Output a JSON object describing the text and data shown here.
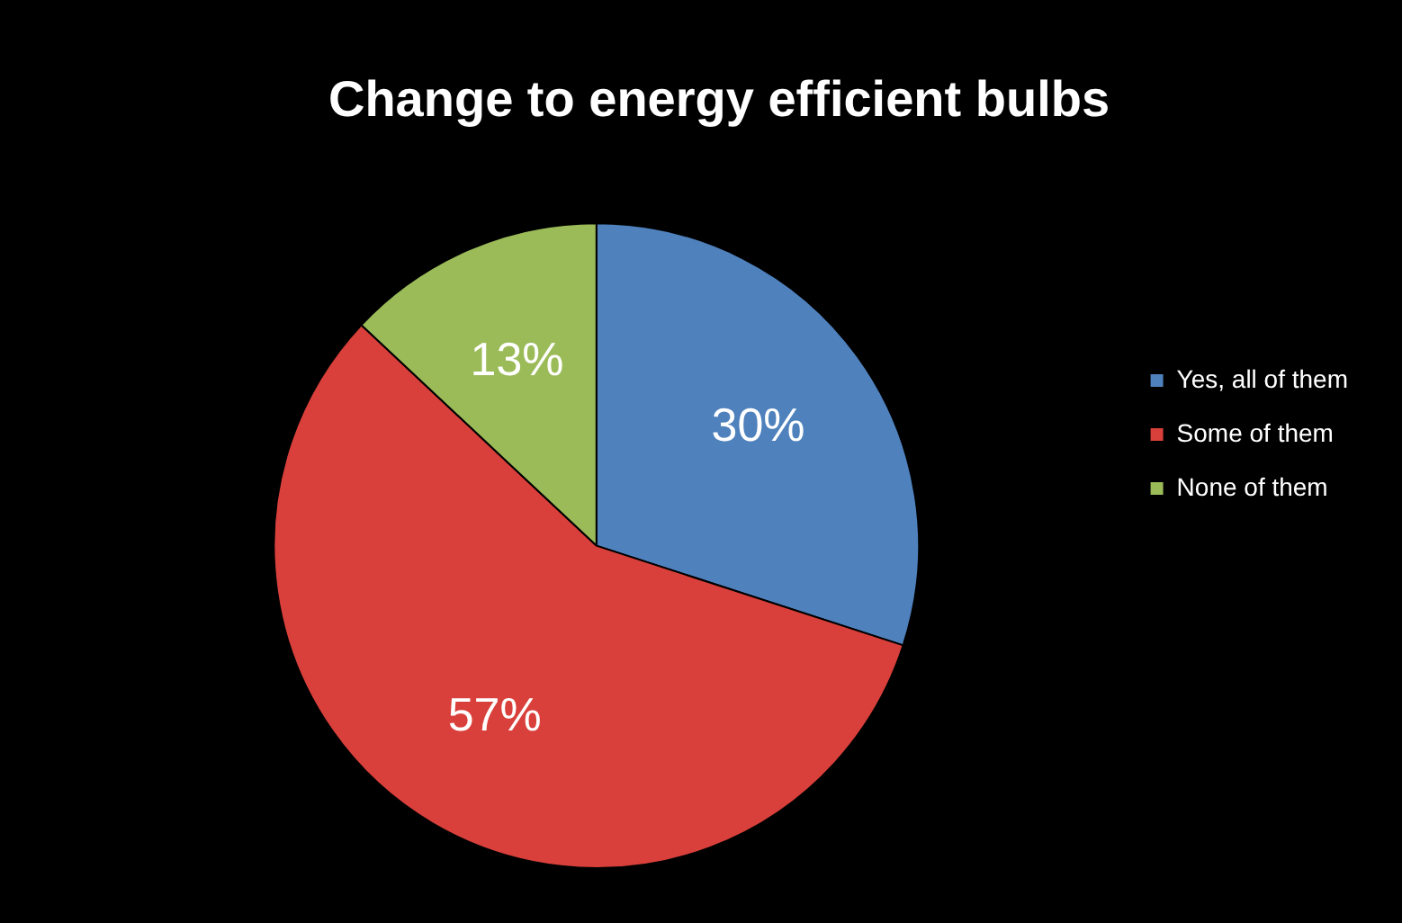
{
  "chart_data": {
    "type": "pie",
    "title": "Change to energy efficient bulbs",
    "categories": [
      "Yes, all of them",
      "Some of them",
      "None of them"
    ],
    "values": [
      30,
      57,
      13
    ],
    "colors": [
      "#4f81bd",
      "#d9403b",
      "#9bbb59"
    ],
    "value_labels": [
      "30%",
      "57%",
      "13%"
    ],
    "legend": "right"
  }
}
